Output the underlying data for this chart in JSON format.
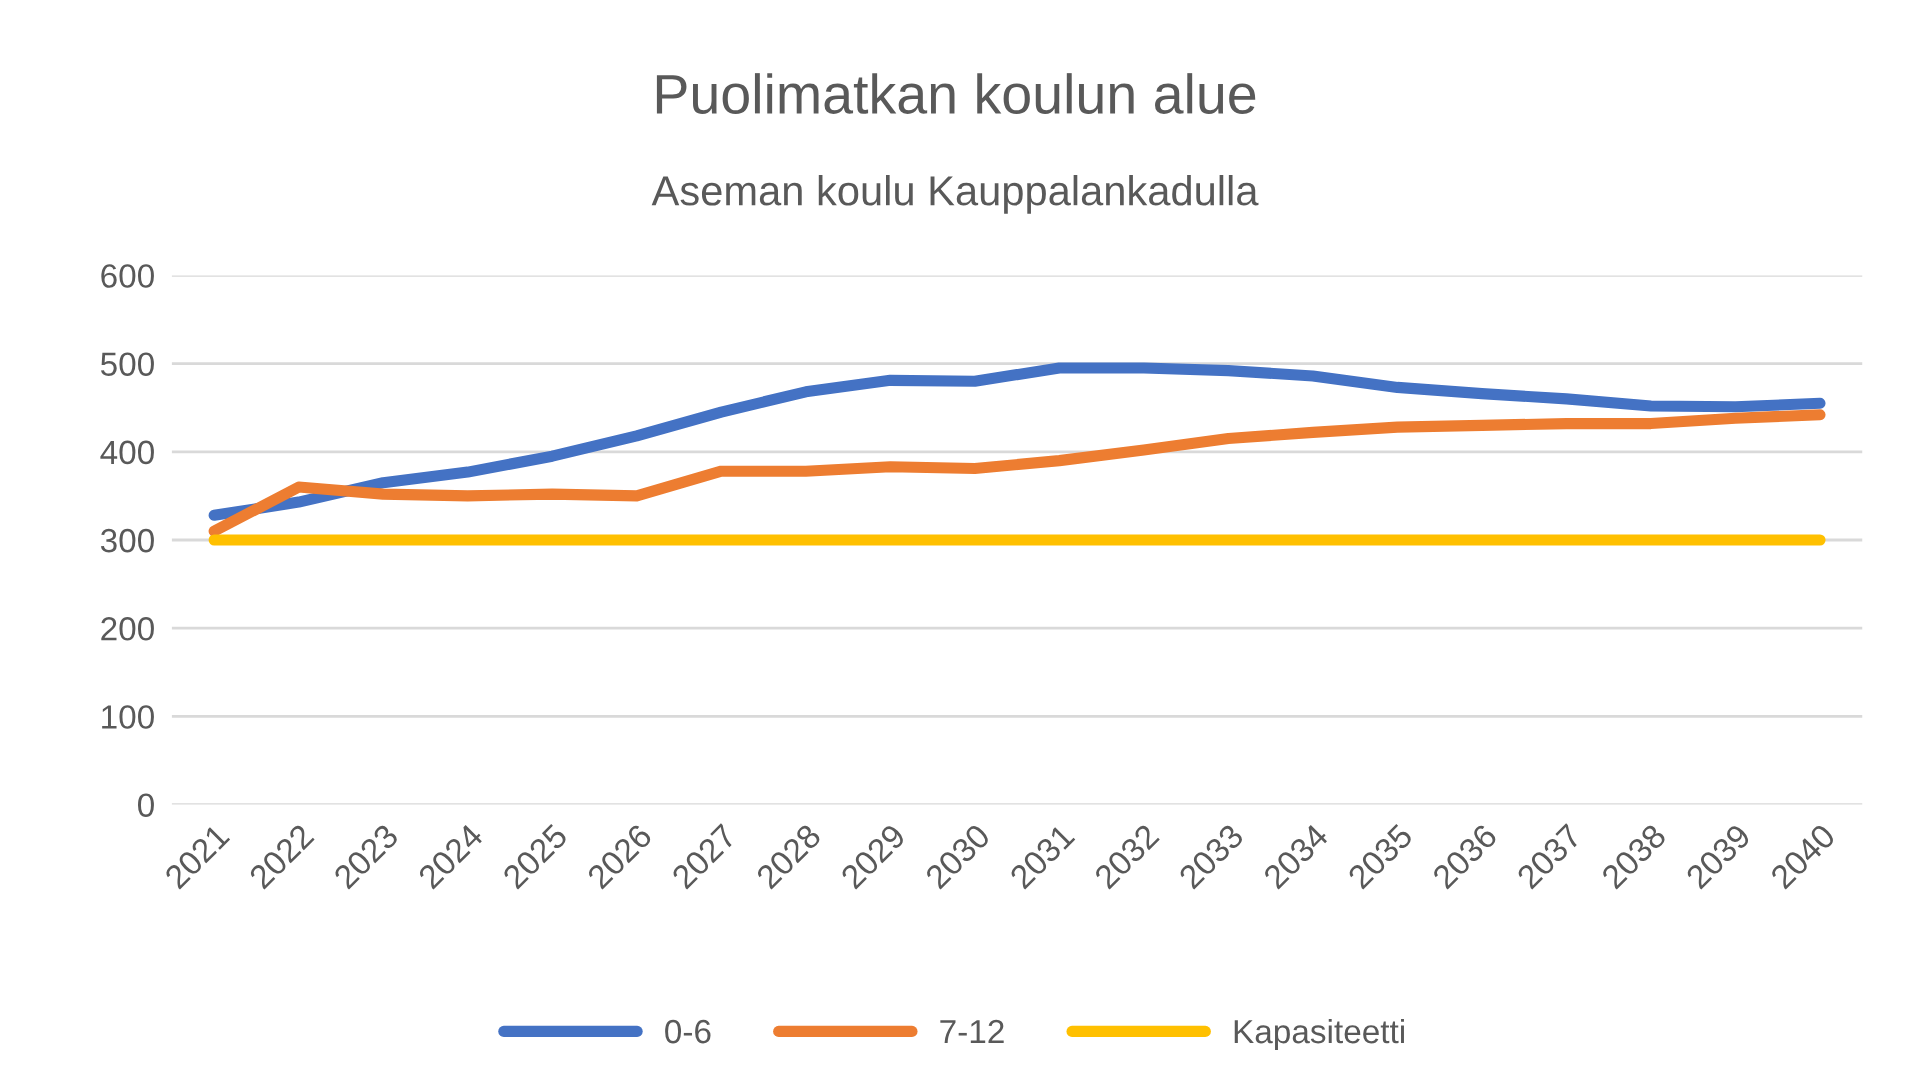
{
  "chart_data": {
    "type": "line",
    "title": "Puolimatkan koulun alue",
    "subtitle": "Aseman koulu Kauppalankadulla",
    "categories": [
      "2021",
      "2022",
      "2023",
      "2024",
      "2025",
      "2026",
      "2027",
      "2028",
      "2029",
      "2030",
      "2031",
      "2032",
      "2033",
      "2034",
      "2035",
      "2036",
      "2037",
      "2038",
      "2039",
      "2040"
    ],
    "series": [
      {
        "name": "0-6",
        "color": "#4472c4",
        "values": [
          328,
          343,
          365,
          377,
          395,
          418,
          445,
          468,
          481,
          480,
          495,
          495,
          492,
          486,
          473,
          466,
          460,
          452,
          451,
          455
        ]
      },
      {
        "name": "7-12",
        "color": "#ed7d31",
        "values": [
          310,
          360,
          352,
          350,
          352,
          350,
          378,
          378,
          383,
          381,
          390,
          402,
          415,
          422,
          428,
          430,
          432,
          432,
          438,
          442
        ]
      },
      {
        "name": "Kapasiteetti",
        "color": "#ffc000",
        "values": [
          300,
          300,
          300,
          300,
          300,
          300,
          300,
          300,
          300,
          300,
          300,
          300,
          300,
          300,
          300,
          300,
          300,
          300,
          300,
          300
        ]
      }
    ],
    "ylim": [
      0,
      600
    ],
    "yticks": [
      0,
      100,
      200,
      300,
      400,
      500,
      600
    ],
    "grid": "y",
    "legend": "bottom",
    "marker": "none",
    "line_style": "solid"
  }
}
